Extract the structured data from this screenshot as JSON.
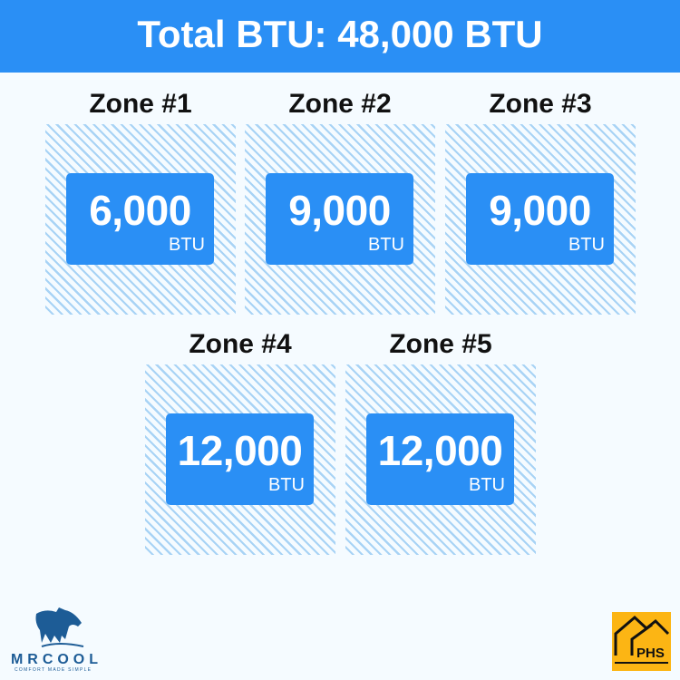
{
  "header": {
    "title": "Total BTU: 48,000 BTU"
  },
  "zones": [
    {
      "label": "Zone #1",
      "value": "6,000",
      "unit": "BTU"
    },
    {
      "label": "Zone #2",
      "value": "9,000",
      "unit": "BTU"
    },
    {
      "label": "Zone #3",
      "value": "9,000",
      "unit": "BTU"
    },
    {
      "label": "Zone #4",
      "value": "12,000",
      "unit": "BTU"
    },
    {
      "label": "Zone #5",
      "value": "12,000",
      "unit": "BTU"
    }
  ],
  "logos": {
    "left": "MRCOOL",
    "left_tagline": "COMFORT MADE SIMPLE",
    "right": "PHS"
  },
  "colors": {
    "accent": "#2a8ff5",
    "hatch": "#a8d3f5",
    "phs": "#fcb514",
    "mrcool": "#1d5c96"
  }
}
